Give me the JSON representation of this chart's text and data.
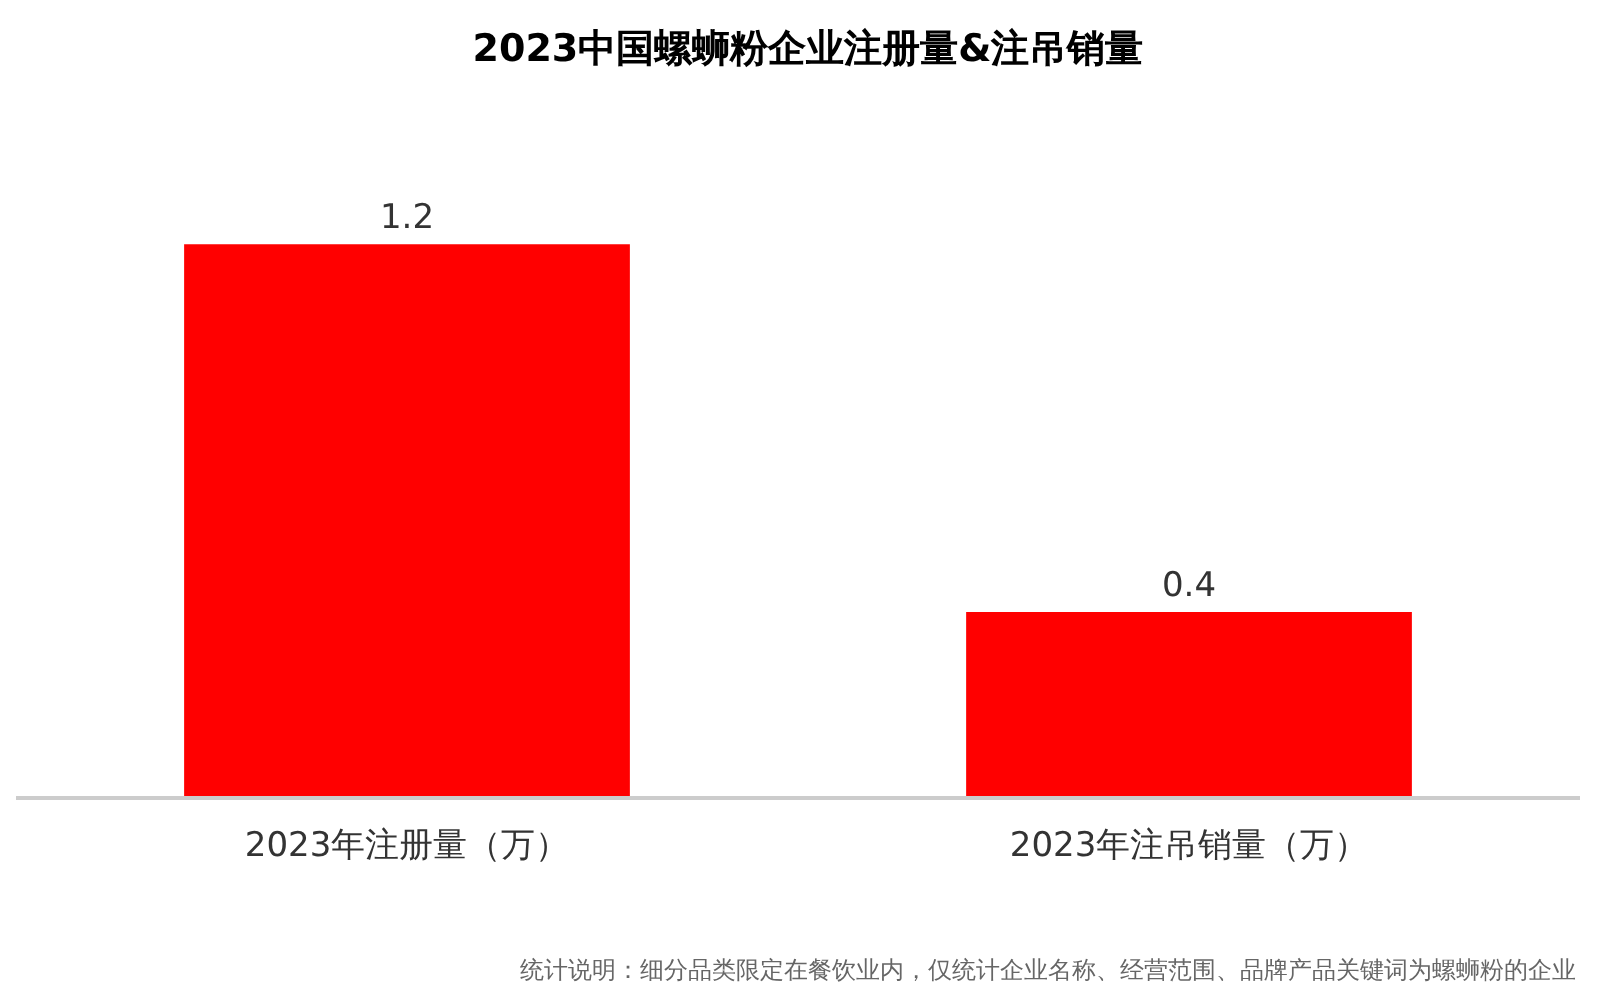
{
  "chart_data": {
    "type": "bar",
    "title": "2023中国螺蛳粉企业注册量&注吊销量",
    "categories": [
      "2023年注册量（万）",
      "2023年注吊销量（万）"
    ],
    "values": [
      1.2,
      0.4
    ],
    "color": "#ff0000",
    "data_labels": true,
    "grid": false,
    "legend": false,
    "annotations": [
      "统计说明：细分品类限定在餐饮业内，仅统计企业名称、经营范围、品牌产品关键词为螺蛳粉的企业"
    ]
  }
}
